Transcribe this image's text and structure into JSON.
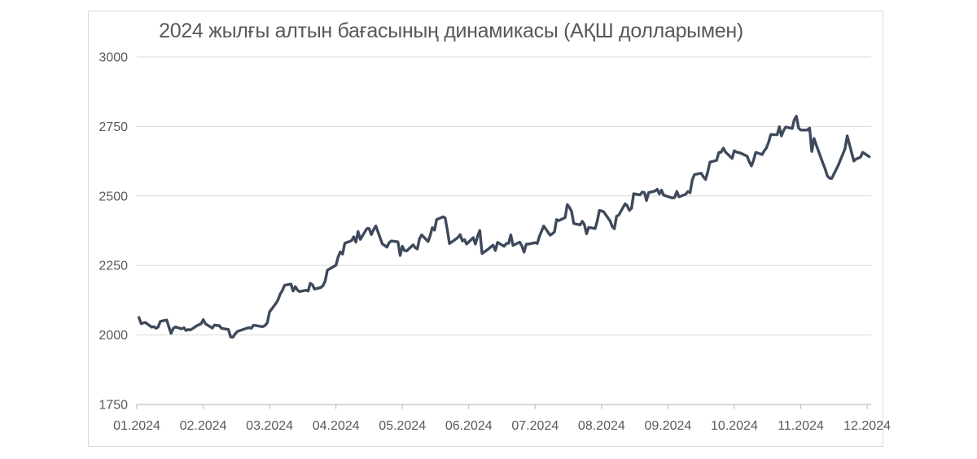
{
  "chart_data": {
    "type": "line",
    "title": "2024 жылғы алтын бағасының динамикасы (АҚШ долларымен)",
    "legend": "none",
    "grid": "horizontal",
    "x_axis": {
      "labels": [
        "01.2024",
        "02.2024",
        "03.2024",
        "04.2024",
        "05.2024",
        "06.2024",
        "07.2024",
        "08.2024",
        "09.2024",
        "10.2024",
        "11.2024",
        "12.2024"
      ]
    },
    "y_axis": {
      "min": 1750,
      "max": 3000,
      "step": 250,
      "ticks": [
        3000,
        2750,
        2500,
        2250,
        2000,
        1750
      ]
    },
    "series": [
      {
        "points": [
          [
            "01-02",
            2063
          ],
          [
            "01-03",
            2041
          ],
          [
            "01-04",
            2043
          ],
          [
            "01-05",
            2045
          ],
          [
            "01-08",
            2028
          ],
          [
            "01-09",
            2030
          ],
          [
            "01-10",
            2024
          ],
          [
            "01-11",
            2029
          ],
          [
            "01-12",
            2049
          ],
          [
            "01-15",
            2054
          ],
          [
            "01-16",
            2028
          ],
          [
            "01-17",
            2006
          ],
          [
            "01-18",
            2023
          ],
          [
            "01-19",
            2029
          ],
          [
            "01-22",
            2022
          ],
          [
            "01-23",
            2026
          ],
          [
            "01-24",
            2016
          ],
          [
            "01-25",
            2020
          ],
          [
            "01-26",
            2018
          ],
          [
            "01-29",
            2033
          ],
          [
            "01-30",
            2037
          ],
          [
            "01-31",
            2040
          ],
          [
            "02-01",
            2055
          ],
          [
            "02-02",
            2040
          ],
          [
            "02-05",
            2025
          ],
          [
            "02-06",
            2036
          ],
          [
            "02-07",
            2034
          ],
          [
            "02-08",
            2034
          ],
          [
            "02-09",
            2024
          ],
          [
            "02-12",
            2020
          ],
          [
            "02-13",
            1993
          ],
          [
            "02-14",
            1992
          ],
          [
            "02-15",
            2004
          ],
          [
            "02-16",
            2013
          ],
          [
            "02-20",
            2024
          ],
          [
            "02-21",
            2026
          ],
          [
            "02-22",
            2024
          ],
          [
            "02-23",
            2035
          ],
          [
            "02-26",
            2031
          ],
          [
            "02-27",
            2030
          ],
          [
            "02-28",
            2034
          ],
          [
            "02-29",
            2044
          ],
          [
            "03-01",
            2083
          ],
          [
            "03-04",
            2114
          ],
          [
            "03-05",
            2127
          ],
          [
            "03-06",
            2148
          ],
          [
            "03-07",
            2160
          ],
          [
            "03-08",
            2179
          ],
          [
            "03-11",
            2183
          ],
          [
            "03-12",
            2158
          ],
          [
            "03-13",
            2174
          ],
          [
            "03-14",
            2162
          ],
          [
            "03-15",
            2156
          ],
          [
            "03-18",
            2161
          ],
          [
            "03-19",
            2158
          ],
          [
            "03-20",
            2186
          ],
          [
            "03-21",
            2181
          ],
          [
            "03-22",
            2165
          ],
          [
            "03-25",
            2171
          ],
          [
            "03-26",
            2178
          ],
          [
            "03-27",
            2195
          ],
          [
            "03-28",
            2233
          ],
          [
            "04-01",
            2251
          ],
          [
            "04-02",
            2281
          ],
          [
            "04-03",
            2299
          ],
          [
            "04-04",
            2291
          ],
          [
            "04-05",
            2330
          ],
          [
            "04-08",
            2339
          ],
          [
            "04-09",
            2353
          ],
          [
            "04-10",
            2334
          ],
          [
            "04-11",
            2372
          ],
          [
            "04-12",
            2344
          ],
          [
            "04-15",
            2383
          ],
          [
            "04-16",
            2383
          ],
          [
            "04-17",
            2361
          ],
          [
            "04-18",
            2379
          ],
          [
            "04-19",
            2392
          ],
          [
            "04-22",
            2327
          ],
          [
            "04-23",
            2322
          ],
          [
            "04-24",
            2316
          ],
          [
            "04-25",
            2332
          ],
          [
            "04-26",
            2338
          ],
          [
            "04-29",
            2335
          ],
          [
            "04-30",
            2286
          ],
          [
            "05-01",
            2319
          ],
          [
            "05-02",
            2304
          ],
          [
            "05-03",
            2302
          ],
          [
            "05-06",
            2324
          ],
          [
            "05-07",
            2314
          ],
          [
            "05-08",
            2309
          ],
          [
            "05-09",
            2346
          ],
          [
            "05-10",
            2360
          ],
          [
            "05-13",
            2336
          ],
          [
            "05-14",
            2358
          ],
          [
            "05-15",
            2386
          ],
          [
            "05-16",
            2377
          ],
          [
            "05-17",
            2415
          ],
          [
            "05-20",
            2425
          ],
          [
            "05-21",
            2421
          ],
          [
            "05-22",
            2378
          ],
          [
            "05-23",
            2329
          ],
          [
            "05-24",
            2334
          ],
          [
            "05-27",
            2351
          ],
          [
            "05-28",
            2361
          ],
          [
            "05-29",
            2338
          ],
          [
            "05-30",
            2343
          ],
          [
            "05-31",
            2327
          ],
          [
            "06-03",
            2350
          ],
          [
            "06-04",
            2327
          ],
          [
            "06-05",
            2355
          ],
          [
            "06-06",
            2376
          ],
          [
            "06-07",
            2293
          ],
          [
            "06-10",
            2310
          ],
          [
            "06-11",
            2317
          ],
          [
            "06-12",
            2323
          ],
          [
            "06-13",
            2304
          ],
          [
            "06-14",
            2333
          ],
          [
            "06-17",
            2319
          ],
          [
            "06-18",
            2329
          ],
          [
            "06-19",
            2330
          ],
          [
            "06-20",
            2360
          ],
          [
            "06-21",
            2322
          ],
          [
            "06-24",
            2334
          ],
          [
            "06-25",
            2320
          ],
          [
            "06-26",
            2298
          ],
          [
            "06-27",
            2327
          ],
          [
            "06-28",
            2327
          ],
          [
            "07-01",
            2332
          ],
          [
            "07-02",
            2329
          ],
          [
            "07-03",
            2355
          ],
          [
            "07-05",
            2392
          ],
          [
            "07-08",
            2359
          ],
          [
            "07-09",
            2364
          ],
          [
            "07-10",
            2371
          ],
          [
            "07-11",
            2415
          ],
          [
            "07-12",
            2411
          ],
          [
            "07-15",
            2422
          ],
          [
            "07-16",
            2469
          ],
          [
            "07-17",
            2459
          ],
          [
            "07-18",
            2445
          ],
          [
            "07-19",
            2401
          ],
          [
            "07-22",
            2396
          ],
          [
            "07-23",
            2409
          ],
          [
            "07-24",
            2397
          ],
          [
            "07-25",
            2364
          ],
          [
            "07-26",
            2387
          ],
          [
            "07-29",
            2383
          ],
          [
            "07-30",
            2410
          ],
          [
            "07-31",
            2448
          ],
          [
            "08-01",
            2446
          ],
          [
            "08-02",
            2443
          ],
          [
            "08-05",
            2410
          ],
          [
            "08-06",
            2390
          ],
          [
            "08-07",
            2382
          ],
          [
            "08-08",
            2427
          ],
          [
            "08-09",
            2431
          ],
          [
            "08-12",
            2472
          ],
          [
            "08-13",
            2465
          ],
          [
            "08-14",
            2448
          ],
          [
            "08-15",
            2456
          ],
          [
            "08-16",
            2508
          ],
          [
            "08-19",
            2504
          ],
          [
            "08-20",
            2514
          ],
          [
            "08-21",
            2512
          ],
          [
            "08-22",
            2484
          ],
          [
            "08-23",
            2512
          ],
          [
            "08-26",
            2518
          ],
          [
            "08-27",
            2524
          ],
          [
            "08-28",
            2507
          ],
          [
            "08-29",
            2521
          ],
          [
            "08-30",
            2503
          ],
          [
            "09-03",
            2493
          ],
          [
            "09-04",
            2494
          ],
          [
            "09-05",
            2516
          ],
          [
            "09-06",
            2497
          ],
          [
            "09-09",
            2506
          ],
          [
            "09-10",
            2516
          ],
          [
            "09-11",
            2512
          ],
          [
            "09-12",
            2558
          ],
          [
            "09-13",
            2577
          ],
          [
            "09-16",
            2582
          ],
          [
            "09-17",
            2569
          ],
          [
            "09-18",
            2559
          ],
          [
            "09-19",
            2587
          ],
          [
            "09-20",
            2622
          ],
          [
            "09-23",
            2628
          ],
          [
            "09-24",
            2657
          ],
          [
            "09-25",
            2657
          ],
          [
            "09-26",
            2672
          ],
          [
            "09-27",
            2658
          ],
          [
            "09-30",
            2635
          ],
          [
            "10-01",
            2663
          ],
          [
            "10-02",
            2658
          ],
          [
            "10-03",
            2656
          ],
          [
            "10-04",
            2654
          ],
          [
            "10-07",
            2643
          ],
          [
            "10-08",
            2622
          ],
          [
            "10-09",
            2608
          ],
          [
            "10-10",
            2629
          ],
          [
            "10-11",
            2657
          ],
          [
            "10-14",
            2649
          ],
          [
            "10-15",
            2663
          ],
          [
            "10-16",
            2673
          ],
          [
            "10-17",
            2693
          ],
          [
            "10-18",
            2721
          ],
          [
            "10-21",
            2720
          ],
          [
            "10-22",
            2749
          ],
          [
            "10-23",
            2716
          ],
          [
            "10-24",
            2736
          ],
          [
            "10-25",
            2748
          ],
          [
            "10-28",
            2743
          ],
          [
            "10-29",
            2774
          ],
          [
            "10-30",
            2787
          ],
          [
            "10-31",
            2744
          ],
          [
            "11-01",
            2737
          ],
          [
            "11-04",
            2737
          ],
          [
            "11-05",
            2744
          ],
          [
            "11-06",
            2660
          ],
          [
            "11-07",
            2707
          ],
          [
            "11-08",
            2684
          ],
          [
            "11-11",
            2618
          ],
          [
            "11-12",
            2598
          ],
          [
            "11-13",
            2573
          ],
          [
            "11-14",
            2564
          ],
          [
            "11-15",
            2563
          ],
          [
            "11-18",
            2611
          ],
          [
            "11-19",
            2631
          ],
          [
            "11-20",
            2650
          ],
          [
            "11-21",
            2670
          ],
          [
            "11-22",
            2716
          ],
          [
            "11-25",
            2626
          ],
          [
            "11-26",
            2633
          ],
          [
            "11-27",
            2636
          ],
          [
            "11-28",
            2640
          ],
          [
            "11-29",
            2657
          ],
          [
            "12-02",
            2641
          ]
        ]
      }
    ]
  },
  "colors": {
    "line": "#3E4A5B",
    "gridline": "#D9D9D9",
    "axis": "#BFBFBF",
    "tick_label": "#595959",
    "title": "#595959",
    "frame_border": "#D9D9D9",
    "background": "#FFFFFF"
  }
}
